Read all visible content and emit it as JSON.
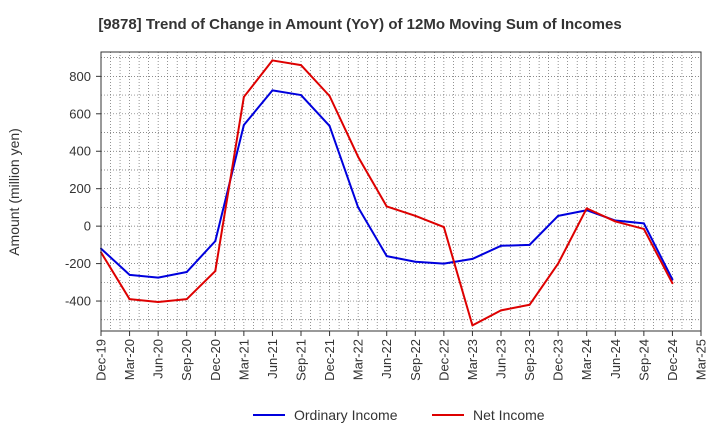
{
  "chart_data": {
    "type": "line",
    "title": "[9878]  Trend of Change in Amount (YoY) of 12Mo Moving Sum of Incomes",
    "xlabel": "",
    "ylabel": "Amount (million yen)",
    "categories": [
      "Dec-19",
      "Mar-20",
      "Jun-20",
      "Sep-20",
      "Dec-20",
      "Mar-21",
      "Jun-21",
      "Sep-21",
      "Dec-21",
      "Mar-22",
      "Jun-22",
      "Sep-22",
      "Dec-22",
      "Mar-23",
      "Jun-23",
      "Sep-23",
      "Dec-23",
      "Mar-24",
      "Jun-24",
      "Sep-24",
      "Dec-24",
      "Mar-25"
    ],
    "ylim": [
      -560,
      930
    ],
    "yticks": [
      -400,
      -200,
      0,
      200,
      400,
      600,
      800
    ],
    "grid": true,
    "legend_position": "bottom",
    "series": [
      {
        "name": "Ordinary Income",
        "color": "#0000dd",
        "values": [
          -120,
          -260,
          -275,
          -245,
          -80,
          540,
          725,
          700,
          535,
          100,
          -160,
          -190,
          -200,
          -175,
          -105,
          -100,
          55,
          85,
          30,
          15,
          -285,
          null
        ]
      },
      {
        "name": "Net Income",
        "color": "#dd0000",
        "values": [
          -140,
          -390,
          -405,
          -390,
          -240,
          690,
          885,
          860,
          695,
          370,
          105,
          55,
          -5,
          -530,
          -450,
          -420,
          -200,
          95,
          25,
          -15,
          -305,
          null
        ]
      }
    ]
  }
}
